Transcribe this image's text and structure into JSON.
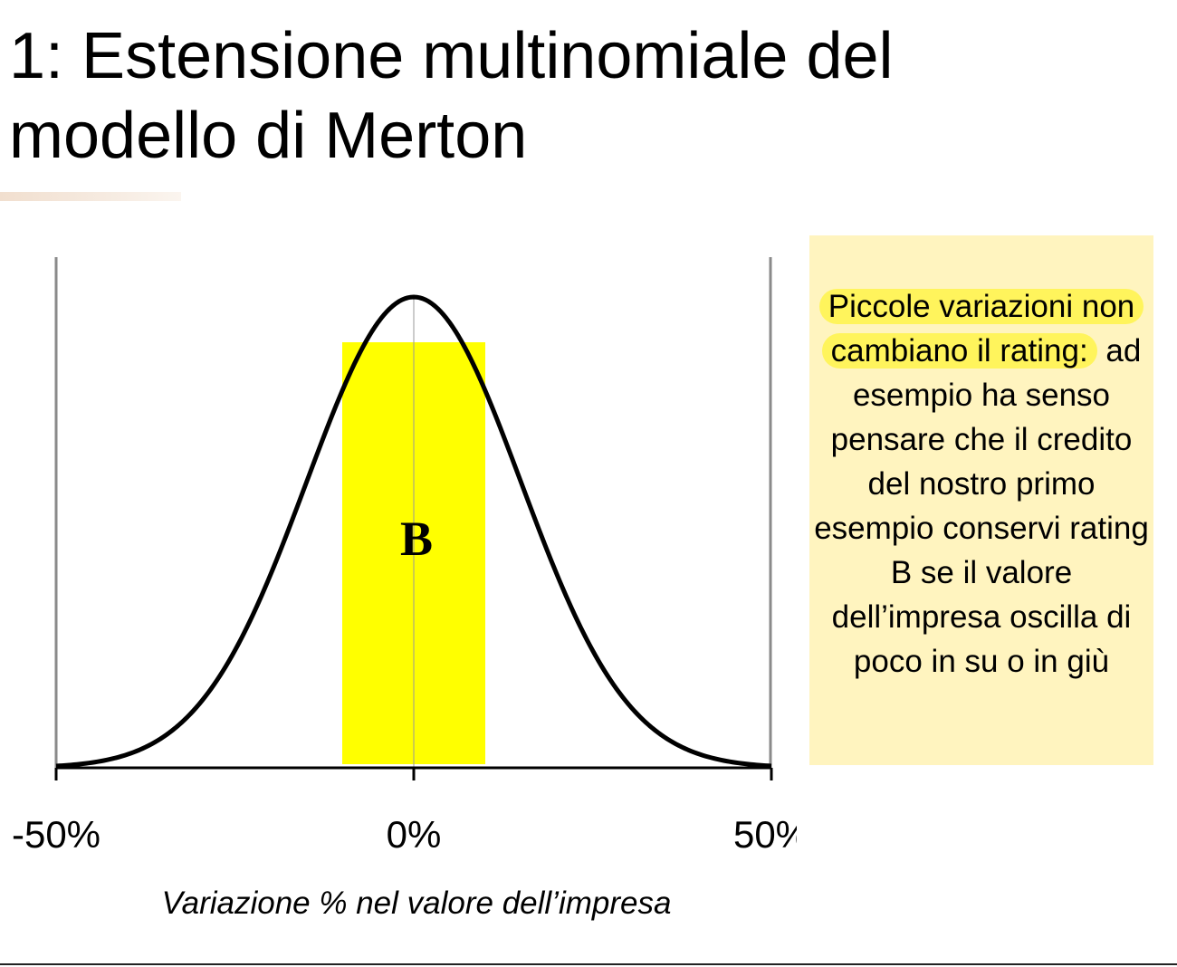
{
  "title": "1: Estensione multinomiale del modello di Merton",
  "note": {
    "highlighted_text": "Piccole variazioni non cambiano il rating:",
    "text": " ad esempio ha senso pensare che il credito del nostro primo esempio conservi rating B se il valore dell’impresa oscilla di poco in su o in giù"
  },
  "colors": {
    "band": "#ffff00",
    "note_background": "#fff4bf",
    "note_highlight": "#fff45c",
    "curve": "#000000"
  },
  "chart_data": {
    "type": "area",
    "distribution": "normal",
    "mean": 0,
    "sd": 0.15,
    "xlim": [
      -0.5,
      0.5
    ],
    "x_ticks": [
      -0.5,
      0,
      0.5
    ],
    "tick_labels": [
      "-50%",
      "0%",
      "50%"
    ],
    "xlabel": "Variazione % nel valore dell’impresa",
    "shaded_region": {
      "from": -0.1,
      "to": 0.1,
      "label": "B",
      "color": "#ffff00"
    }
  }
}
